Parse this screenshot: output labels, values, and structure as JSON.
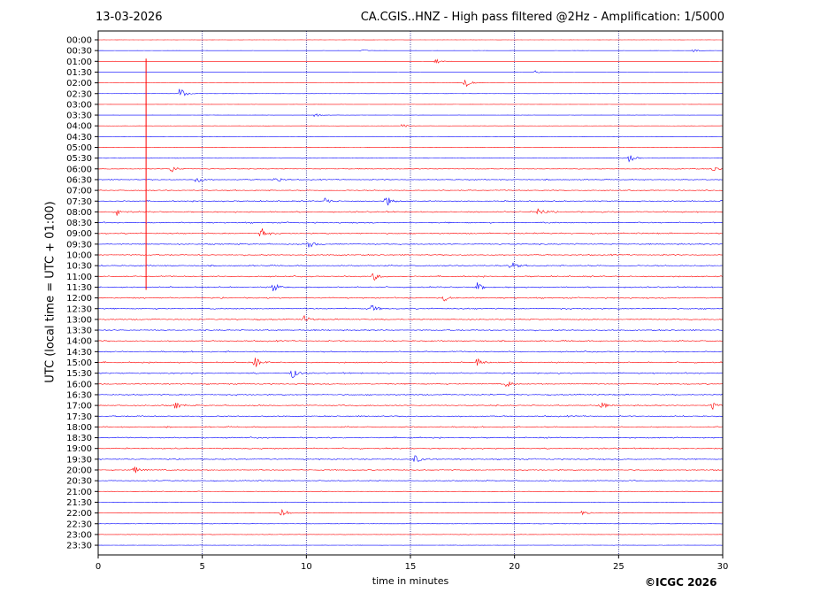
{
  "header": {
    "date": "13-03-2026",
    "title": "CA.CGIS..HNZ - High pass filtered @2Hz - Amplification: 1/5000"
  },
  "footer": {
    "copyright": "©ICGC 2026"
  },
  "chart_data": {
    "type": "line",
    "title": "CA.CGIS..HNZ - High pass filtered @2Hz - Amplification: 1/5000",
    "xlabel": "time in minutes",
    "ylabel": "UTC (local time = UTC + 01:00)",
    "xlim": [
      0,
      30
    ],
    "x_ticks": [
      "0",
      "5",
      "10",
      "15",
      "20",
      "25",
      "30"
    ],
    "grid": "vertical dotted lines at 5-minute intervals",
    "colors": {
      "even_rows": "#ff0000",
      "odd_rows": "#0000ff",
      "grid": "#000080"
    },
    "rows": [
      "00:00",
      "00:30",
      "01:00",
      "01:30",
      "02:00",
      "02:30",
      "03:00",
      "03:30",
      "04:00",
      "04:30",
      "05:00",
      "05:30",
      "06:00",
      "06:30",
      "07:00",
      "07:30",
      "08:00",
      "08:30",
      "09:00",
      "09:30",
      "10:00",
      "10:30",
      "11:00",
      "11:30",
      "12:00",
      "12:30",
      "13:00",
      "13:30",
      "14:00",
      "14:30",
      "15:00",
      "15:30",
      "16:00",
      "16:30",
      "17:00",
      "17:30",
      "18:00",
      "18:30",
      "19:00",
      "19:30",
      "20:00",
      "20:30",
      "21:00",
      "21:30",
      "22:00",
      "22:30",
      "23:00",
      "23:30"
    ],
    "noise_level": [
      0.05,
      0.05,
      0.05,
      0.05,
      0.08,
      0.08,
      0.08,
      0.1,
      0.12,
      0.15,
      0.2,
      0.25,
      0.35,
      0.45,
      0.5,
      0.55,
      0.6,
      0.6,
      0.6,
      0.6,
      0.6,
      0.6,
      0.6,
      0.6,
      0.6,
      0.6,
      0.6,
      0.6,
      0.6,
      0.6,
      0.6,
      0.6,
      0.6,
      0.6,
      0.6,
      0.6,
      0.6,
      0.6,
      0.6,
      0.6,
      0.55,
      0.45,
      0.3,
      0.25,
      0.25,
      0.2,
      0.2,
      0.15
    ],
    "events": [
      {
        "row": "00:30",
        "minute": 12.6,
        "amp": 0.3
      },
      {
        "row": "00:30",
        "minute": 28.6,
        "amp": 0.3
      },
      {
        "row": "01:00",
        "minute": 16.2,
        "amp": 0.5
      },
      {
        "row": "01:30",
        "minute": 21.0,
        "amp": 0.3
      },
      {
        "row": "02:00",
        "minute": 17.6,
        "amp": 1.5
      },
      {
        "row": "02:30",
        "minute": 3.9,
        "amp": 1.4
      },
      {
        "row": "03:30",
        "minute": 10.4,
        "amp": 0.4
      },
      {
        "row": "04:00",
        "minute": 14.6,
        "amp": 0.4
      },
      {
        "row": "05:30",
        "minute": 25.5,
        "amp": 0.8
      },
      {
        "row": "06:00",
        "minute": 3.5,
        "amp": 0.8
      },
      {
        "row": "06:00",
        "minute": 29.5,
        "amp": 0.7
      },
      {
        "row": "06:30",
        "minute": 4.7,
        "amp": 0.8
      },
      {
        "row": "06:30",
        "minute": 8.5,
        "amp": 0.8
      },
      {
        "row": "07:30",
        "minute": 13.8,
        "amp": 1.4
      },
      {
        "row": "07:30",
        "minute": 10.9,
        "amp": 0.8
      },
      {
        "row": "08:00",
        "minute": 21.1,
        "amp": 1.0
      },
      {
        "row": "08:00",
        "minute": 0.9,
        "amp": 0.9
      },
      {
        "row": "09:00",
        "minute": 7.8,
        "amp": 1.3
      },
      {
        "row": "09:30",
        "minute": 10.1,
        "amp": 0.9
      },
      {
        "row": "10:30",
        "minute": 19.8,
        "amp": 0.9
      },
      {
        "row": "11:00",
        "minute": 13.2,
        "amp": 0.9
      },
      {
        "row": "11:30",
        "minute": 8.4,
        "amp": 1.0
      },
      {
        "row": "11:30",
        "minute": 18.2,
        "amp": 0.9
      },
      {
        "row": "12:00",
        "minute": 16.6,
        "amp": 0.7
      },
      {
        "row": "12:30",
        "minute": 13.1,
        "amp": 0.9
      },
      {
        "row": "13:00",
        "minute": 9.9,
        "amp": 0.7
      },
      {
        "row": "15:00",
        "minute": 7.5,
        "amp": 1.2
      },
      {
        "row": "15:00",
        "minute": 18.2,
        "amp": 0.9
      },
      {
        "row": "15:30",
        "minute": 9.3,
        "amp": 1.1
      },
      {
        "row": "16:00",
        "minute": 19.6,
        "amp": 0.7
      },
      {
        "row": "17:00",
        "minute": 3.7,
        "amp": 0.7
      },
      {
        "row": "17:00",
        "minute": 24.1,
        "amp": 0.9
      },
      {
        "row": "17:00",
        "minute": 29.5,
        "amp": 0.8
      },
      {
        "row": "19:30",
        "minute": 15.2,
        "amp": 0.9
      },
      {
        "row": "20:00",
        "minute": 1.7,
        "amp": 0.9
      },
      {
        "row": "22:00",
        "minute": 8.8,
        "amp": 1.2
      },
      {
        "row": "22:00",
        "minute": 23.2,
        "amp": 0.6
      }
    ],
    "spike": {
      "minute": 2.3,
      "from_row": "01:00",
      "to_row": "11:30",
      "color": "#ff0000"
    }
  }
}
